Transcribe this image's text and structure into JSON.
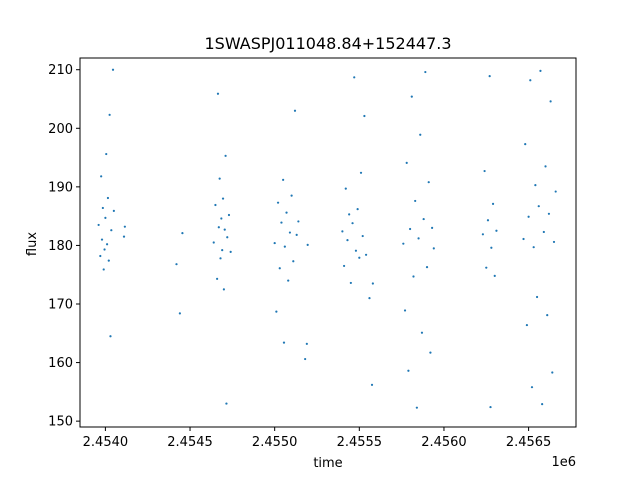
{
  "chart_data": {
    "type": "scatter",
    "title": "1SWASPJ011048.84+152447.3",
    "xlabel": "time",
    "ylabel": "flux",
    "x_offset_label": "1e6",
    "xlim": [
      2453850,
      2456780
    ],
    "ylim": [
      149,
      212
    ],
    "xticks": [
      {
        "value": 2454000,
        "label": "2.4540"
      },
      {
        "value": 2454500,
        "label": "2.4545"
      },
      {
        "value": 2455000,
        "label": "2.4550"
      },
      {
        "value": 2455500,
        "label": "2.4555"
      },
      {
        "value": 2456000,
        "label": "2.4560"
      },
      {
        "value": 2456500,
        "label": "2.4565"
      }
    ],
    "yticks": [
      {
        "value": 150,
        "label": "150"
      },
      {
        "value": 160,
        "label": "160"
      },
      {
        "value": 170,
        "label": "170"
      },
      {
        "value": 180,
        "label": "180"
      },
      {
        "value": 190,
        "label": "190"
      },
      {
        "value": 200,
        "label": "200"
      },
      {
        "value": 210,
        "label": "210"
      }
    ],
    "grid": false,
    "legend": "none",
    "marker_color": "#1f77b4",
    "series": [
      {
        "values": [
          {
            "x": 2453960,
            "y": 183.5
          },
          {
            "x": 2453970,
            "y": 178.2
          },
          {
            "x": 2453975,
            "y": 191.8
          },
          {
            "x": 2453980,
            "y": 181.0
          },
          {
            "x": 2453985,
            "y": 186.4
          },
          {
            "x": 2453990,
            "y": 175.9
          },
          {
            "x": 2453995,
            "y": 179.3
          },
          {
            "x": 2454000,
            "y": 184.7
          },
          {
            "x": 2454005,
            "y": 195.6
          },
          {
            "x": 2454010,
            "y": 180.2
          },
          {
            "x": 2454015,
            "y": 188.1
          },
          {
            "x": 2454020,
            "y": 177.4
          },
          {
            "x": 2454025,
            "y": 202.3
          },
          {
            "x": 2454030,
            "y": 164.5
          },
          {
            "x": 2454035,
            "y": 182.6
          },
          {
            "x": 2454045,
            "y": 210.0
          },
          {
            "x": 2454050,
            "y": 185.9
          },
          {
            "x": 2454110,
            "y": 181.5
          },
          {
            "x": 2454115,
            "y": 183.2
          },
          {
            "x": 2454420,
            "y": 176.8
          },
          {
            "x": 2454440,
            "y": 168.4
          },
          {
            "x": 2454455,
            "y": 182.1
          },
          {
            "x": 2454640,
            "y": 180.5
          },
          {
            "x": 2454650,
            "y": 186.9
          },
          {
            "x": 2454660,
            "y": 174.3
          },
          {
            "x": 2454665,
            "y": 205.9
          },
          {
            "x": 2454670,
            "y": 183.1
          },
          {
            "x": 2454675,
            "y": 191.4
          },
          {
            "x": 2454680,
            "y": 177.8
          },
          {
            "x": 2454685,
            "y": 184.6
          },
          {
            "x": 2454690,
            "y": 179.2
          },
          {
            "x": 2454695,
            "y": 188.0
          },
          {
            "x": 2454700,
            "y": 172.5
          },
          {
            "x": 2454705,
            "y": 182.7
          },
          {
            "x": 2454710,
            "y": 195.3
          },
          {
            "x": 2454715,
            "y": 153.0
          },
          {
            "x": 2454720,
            "y": 181.4
          },
          {
            "x": 2454730,
            "y": 185.2
          },
          {
            "x": 2454740,
            "y": 178.9
          },
          {
            "x": 2455000,
            "y": 180.4
          },
          {
            "x": 2455010,
            "y": 168.7
          },
          {
            "x": 2455020,
            "y": 187.3
          },
          {
            "x": 2455030,
            "y": 176.1
          },
          {
            "x": 2455040,
            "y": 183.9
          },
          {
            "x": 2455050,
            "y": 191.2
          },
          {
            "x": 2455055,
            "y": 163.4
          },
          {
            "x": 2455060,
            "y": 179.8
          },
          {
            "x": 2455070,
            "y": 185.6
          },
          {
            "x": 2455080,
            "y": 174.0
          },
          {
            "x": 2455090,
            "y": 182.2
          },
          {
            "x": 2455100,
            "y": 188.5
          },
          {
            "x": 2455110,
            "y": 177.3
          },
          {
            "x": 2455120,
            "y": 203.0
          },
          {
            "x": 2455130,
            "y": 181.8
          },
          {
            "x": 2455140,
            "y": 184.1
          },
          {
            "x": 2455180,
            "y": 160.6
          },
          {
            "x": 2455190,
            "y": 163.2
          },
          {
            "x": 2455195,
            "y": 180.1
          },
          {
            "x": 2455400,
            "y": 182.4
          },
          {
            "x": 2455410,
            "y": 176.5
          },
          {
            "x": 2455420,
            "y": 189.7
          },
          {
            "x": 2455430,
            "y": 180.9
          },
          {
            "x": 2455440,
            "y": 185.3
          },
          {
            "x": 2455450,
            "y": 173.6
          },
          {
            "x": 2455460,
            "y": 183.8
          },
          {
            "x": 2455470,
            "y": 208.7
          },
          {
            "x": 2455480,
            "y": 179.1
          },
          {
            "x": 2455490,
            "y": 186.2
          },
          {
            "x": 2455500,
            "y": 177.9
          },
          {
            "x": 2455510,
            "y": 192.4
          },
          {
            "x": 2455520,
            "y": 181.6
          },
          {
            "x": 2455530,
            "y": 202.1
          },
          {
            "x": 2455540,
            "y": 178.4
          },
          {
            "x": 2455560,
            "y": 171.0
          },
          {
            "x": 2455575,
            "y": 156.2
          },
          {
            "x": 2455580,
            "y": 173.5
          },
          {
            "x": 2455760,
            "y": 180.3
          },
          {
            "x": 2455770,
            "y": 168.9
          },
          {
            "x": 2455780,
            "y": 194.1
          },
          {
            "x": 2455790,
            "y": 158.6
          },
          {
            "x": 2455800,
            "y": 182.8
          },
          {
            "x": 2455810,
            "y": 205.4
          },
          {
            "x": 2455820,
            "y": 174.7
          },
          {
            "x": 2455830,
            "y": 187.6
          },
          {
            "x": 2455840,
            "y": 152.3
          },
          {
            "x": 2455850,
            "y": 181.2
          },
          {
            "x": 2455860,
            "y": 198.9
          },
          {
            "x": 2455870,
            "y": 165.1
          },
          {
            "x": 2455880,
            "y": 184.5
          },
          {
            "x": 2455890,
            "y": 209.6
          },
          {
            "x": 2455900,
            "y": 176.3
          },
          {
            "x": 2455910,
            "y": 190.8
          },
          {
            "x": 2455920,
            "y": 161.7
          },
          {
            "x": 2455930,
            "y": 183.0
          },
          {
            "x": 2455940,
            "y": 179.5
          },
          {
            "x": 2456230,
            "y": 181.9
          },
          {
            "x": 2456240,
            "y": 192.7
          },
          {
            "x": 2456250,
            "y": 176.2
          },
          {
            "x": 2456260,
            "y": 184.3
          },
          {
            "x": 2456270,
            "y": 208.9
          },
          {
            "x": 2456275,
            "y": 152.4
          },
          {
            "x": 2456280,
            "y": 179.6
          },
          {
            "x": 2456290,
            "y": 187.1
          },
          {
            "x": 2456300,
            "y": 174.8
          },
          {
            "x": 2456310,
            "y": 182.5
          },
          {
            "x": 2456470,
            "y": 181.1
          },
          {
            "x": 2456480,
            "y": 197.3
          },
          {
            "x": 2456490,
            "y": 166.4
          },
          {
            "x": 2456500,
            "y": 184.9
          },
          {
            "x": 2456510,
            "y": 208.2
          },
          {
            "x": 2456520,
            "y": 155.8
          },
          {
            "x": 2456530,
            "y": 179.7
          },
          {
            "x": 2456540,
            "y": 190.3
          },
          {
            "x": 2456550,
            "y": 171.2
          },
          {
            "x": 2456560,
            "y": 186.7
          },
          {
            "x": 2456570,
            "y": 209.8
          },
          {
            "x": 2456580,
            "y": 152.9
          },
          {
            "x": 2456590,
            "y": 182.3
          },
          {
            "x": 2456600,
            "y": 193.5
          },
          {
            "x": 2456610,
            "y": 168.1
          },
          {
            "x": 2456620,
            "y": 185.4
          },
          {
            "x": 2456630,
            "y": 204.6
          },
          {
            "x": 2456640,
            "y": 158.3
          },
          {
            "x": 2456650,
            "y": 180.6
          },
          {
            "x": 2456660,
            "y": 189.2
          }
        ]
      }
    ]
  }
}
